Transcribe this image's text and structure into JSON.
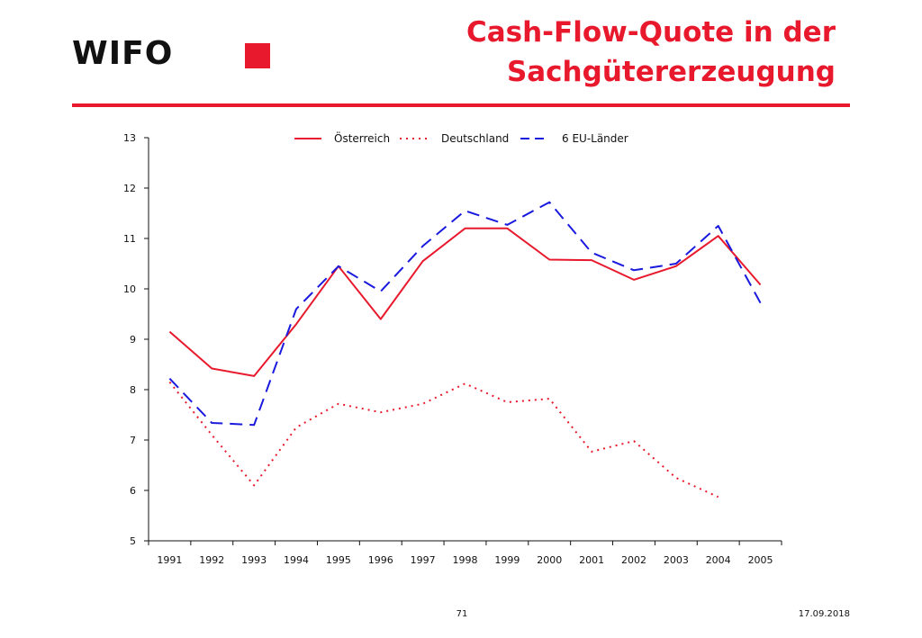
{
  "logo": {
    "text": "WIFO"
  },
  "title": {
    "line1": "Cash-Flow-Quote in der",
    "line2": "Sachgütererzeugung"
  },
  "footer": {
    "page": "71",
    "date": "17.09.2018"
  },
  "colors": {
    "accent": "#e8192c",
    "eu": "#1a1adf"
  },
  "chart_data": {
    "type": "line",
    "title": "",
    "xlabel": "",
    "ylabel": "",
    "categories": [
      "1991",
      "1992",
      "1993",
      "1994",
      "1995",
      "1996",
      "1997",
      "1998",
      "1999",
      "2000",
      "2001",
      "2002",
      "2003",
      "2004",
      "2005"
    ],
    "ylim": [
      5,
      13
    ],
    "yticks": [
      5,
      6,
      7,
      8,
      9,
      10,
      11,
      12,
      13
    ],
    "grid": false,
    "legend_position": "top",
    "series": [
      {
        "name": "Österreich",
        "color": "#e8192c",
        "style": "solid",
        "values": [
          9.15,
          8.42,
          8.27,
          9.3,
          10.45,
          9.4,
          10.55,
          11.2,
          11.2,
          10.58,
          10.57,
          10.18,
          10.45,
          11.05,
          10.08
        ]
      },
      {
        "name": "Deutschland",
        "color": "#e8192c",
        "style": "dotted",
        "values": [
          8.15,
          7.1,
          6.1,
          7.25,
          7.72,
          7.55,
          7.72,
          8.12,
          7.75,
          7.82,
          6.77,
          6.98,
          6.25,
          5.87,
          null
        ]
      },
      {
        "name": "6 EU-Länder",
        "color": "#1a1adf",
        "style": "dashed",
        "values": [
          8.22,
          7.34,
          7.3,
          9.6,
          10.45,
          9.95,
          10.85,
          11.55,
          11.27,
          11.72,
          10.72,
          10.37,
          10.5,
          11.25,
          9.72
        ]
      }
    ]
  }
}
